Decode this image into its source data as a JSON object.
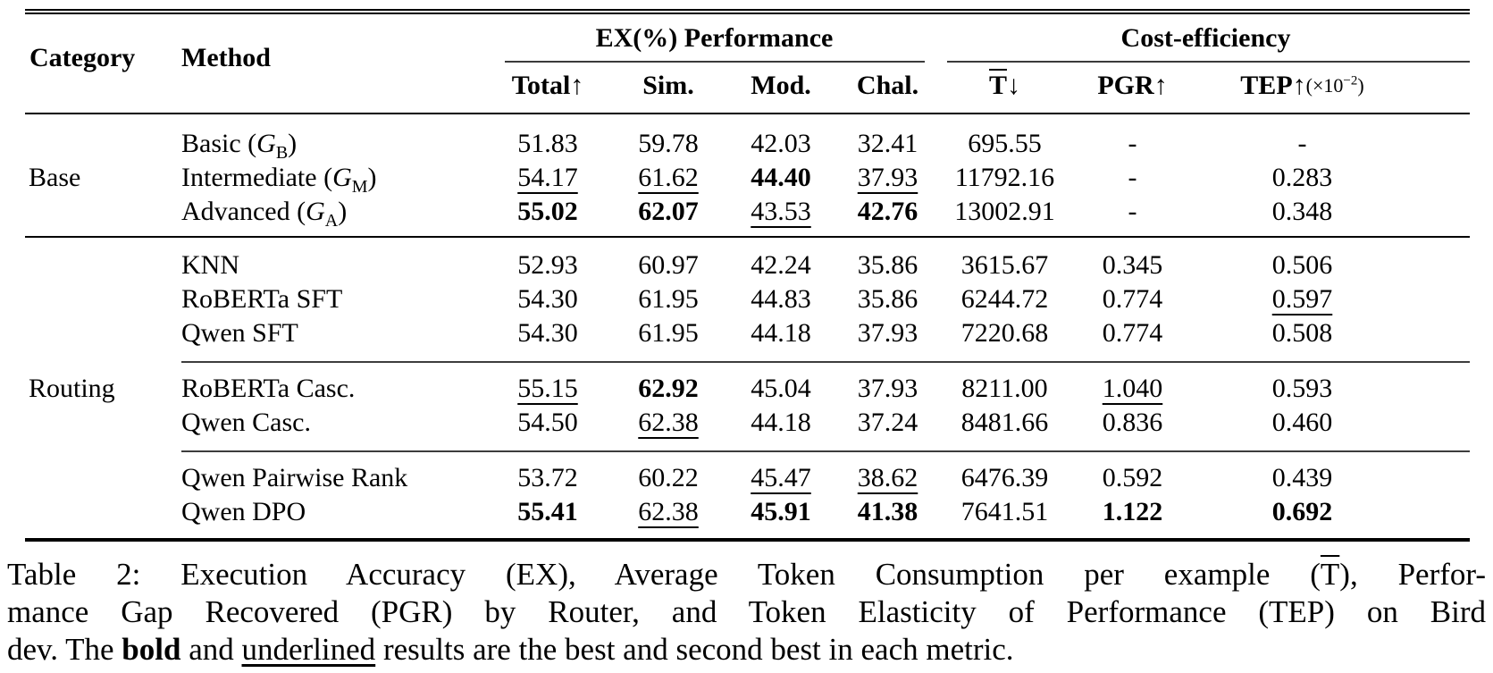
{
  "table": {
    "header": {
      "category": "Category",
      "method": "Method",
      "group_ex": "EX(%) Performance",
      "group_cost": "Cost-efficiency",
      "total": "Total↑",
      "sim": "Sim.",
      "mod": "Mod.",
      "chal": "Chal.",
      "tbar": {
        "base": "T",
        "arrow": "↓"
      },
      "pgr": "PGR↑",
      "tep": {
        "main": "TEP↑",
        "note_open": "(×10",
        "note_sup": "−2",
        "note_close": ")"
      }
    },
    "sections": [
      {
        "category": "Base",
        "rows": [
          {
            "method": {
              "prefix": "Basic (",
              "var": "G",
              "sub": "B",
              "suffix": ")"
            },
            "cells": [
              "51.83",
              "59.78",
              "42.03",
              "32.41",
              "695.55",
              "-",
              "-"
            ]
          },
          {
            "method": {
              "prefix": "Intermediate (",
              "var": "G",
              "sub": "M",
              "suffix": ")"
            },
            "cells": [
              {
                "text": "54.17",
                "style": "u"
              },
              {
                "text": "61.62",
                "style": "u"
              },
              {
                "text": "44.40",
                "style": "b"
              },
              {
                "text": "37.93",
                "style": "u"
              },
              "11792.16",
              "-",
              "0.283"
            ]
          },
          {
            "method": {
              "prefix": "Advanced (",
              "var": "G",
              "sub": "A",
              "suffix": ")"
            },
            "cells": [
              {
                "text": "55.02",
                "style": "b"
              },
              {
                "text": "62.07",
                "style": "b"
              },
              {
                "text": "43.53",
                "style": "u"
              },
              {
                "text": "42.76",
                "style": "b"
              },
              "13002.91",
              "-",
              "0.348"
            ]
          }
        ]
      },
      {
        "category": "Routing",
        "rows": [
          {
            "method": "KNN",
            "cells": [
              "52.93",
              "60.97",
              "42.24",
              "35.86",
              "3615.67",
              "0.345",
              "0.506"
            ]
          },
          {
            "method": "RoBERTa SFT",
            "cells": [
              "54.30",
              "61.95",
              "44.83",
              "35.86",
              "6244.72",
              "0.774",
              {
                "text": "0.597",
                "style": "u"
              }
            ]
          },
          {
            "method": "Qwen SFT",
            "cells": [
              "54.30",
              "61.95",
              "44.18",
              "37.93",
              "7220.68",
              "0.774",
              "0.508"
            ]
          },
          {
            "method": "RoBERTa Casc.",
            "cells": [
              {
                "text": "55.15",
                "style": "u"
              },
              {
                "text": "62.92",
                "style": "b"
              },
              "45.04",
              "37.93",
              "8211.00",
              {
                "text": "1.040",
                "style": "u"
              },
              "0.593"
            ]
          },
          {
            "method": "Qwen Casc.",
            "cells": [
              "54.50",
              {
                "text": "62.38",
                "style": "u"
              },
              "44.18",
              "37.24",
              "8481.66",
              "0.836",
              "0.460"
            ]
          },
          {
            "method": "Qwen Pairwise Rank",
            "cells": [
              "53.72",
              "60.22",
              {
                "text": "45.47",
                "style": "u"
              },
              {
                "text": "38.62",
                "style": "u"
              },
              "6476.39",
              "0.592",
              "0.439"
            ]
          },
          {
            "method": "Qwen DPO",
            "cells": [
              {
                "text": "55.41",
                "style": "b"
              },
              {
                "text": "62.38",
                "style": "u"
              },
              {
                "text": "45.91",
                "style": "b"
              },
              {
                "text": "41.38",
                "style": "b"
              },
              "7641.51",
              {
                "text": "1.122",
                "style": "b"
              },
              {
                "text": "0.692",
                "style": "b"
              }
            ]
          }
        ]
      }
    ]
  },
  "caption": {
    "line1": {
      "pre": "Table 2: Execution Accuracy (EX), Average Token Consumption per example (",
      "tbar": "T",
      "post": "), Perfor-"
    },
    "line2": "mance Gap Recovered (PGR) by Router, and Token Elasticity of Performance (TEP) on Bird",
    "line3": {
      "pre": "dev. The ",
      "bold_word": "bold",
      "mid": " and ",
      "underline_word": "underlined",
      "post": " results are the best and second best in each metric."
    }
  }
}
